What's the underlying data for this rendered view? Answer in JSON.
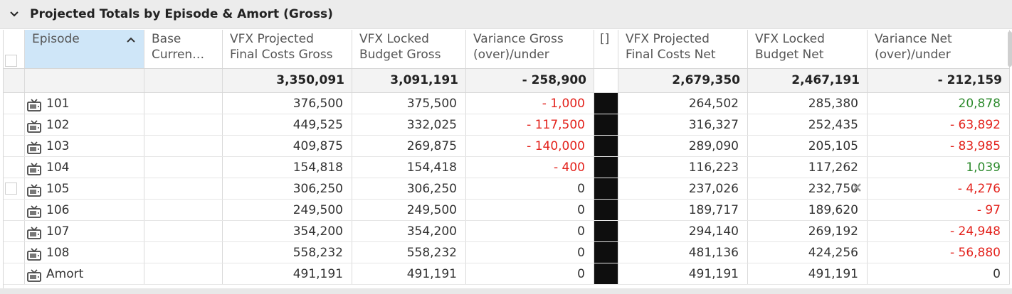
{
  "panel": {
    "title": "Projected Totals by Episode & Amort (Gross)",
    "collapse_icon": "chevron-down-icon"
  },
  "columns": [
    {
      "key": "episode",
      "label": "Episode",
      "sort": "ascending"
    },
    {
      "key": "base_currency",
      "label": "Base\nCurren…"
    },
    {
      "key": "vfx_proj_gross",
      "label": "VFX Projected\nFinal Costs Gross"
    },
    {
      "key": "vfx_locked_gross",
      "label": "VFX Locked\nBudget Gross"
    },
    {
      "key": "var_gross",
      "label": "Variance Gross\n(over)/under"
    },
    {
      "key": "bracket",
      "label": "[]"
    },
    {
      "key": "vfx_proj_net",
      "label": "VFX Projected\nFinal Costs Net"
    },
    {
      "key": "vfx_locked_net",
      "label": "VFX Locked\nBudget Net"
    },
    {
      "key": "var_net",
      "label": "Variance Net\n(over)/under"
    }
  ],
  "totals": {
    "vfx_proj_gross": "3,350,091",
    "vfx_locked_gross": "3,091,191",
    "var_gross": "- 258,900",
    "vfx_proj_net": "2,679,350",
    "vfx_locked_net": "2,467,191",
    "var_net": "- 212,159"
  },
  "rows": [
    {
      "episode": "101",
      "vfx_proj_gross": "376,500",
      "vfx_locked_gross": "375,500",
      "var_gross": "- 1,000",
      "var_gross_tone": "neg",
      "vfx_proj_net": "264,502",
      "vfx_locked_net": "285,380",
      "var_net": "20,878",
      "var_net_tone": "pos"
    },
    {
      "episode": "102",
      "vfx_proj_gross": "449,525",
      "vfx_locked_gross": "332,025",
      "var_gross": "- 117,500",
      "var_gross_tone": "neg",
      "vfx_proj_net": "316,327",
      "vfx_locked_net": "252,435",
      "var_net": "- 63,892",
      "var_net_tone": "neg"
    },
    {
      "episode": "103",
      "vfx_proj_gross": "409,875",
      "vfx_locked_gross": "269,875",
      "var_gross": "- 140,000",
      "var_gross_tone": "neg",
      "vfx_proj_net": "289,090",
      "vfx_locked_net": "205,105",
      "var_net": "- 83,985",
      "var_net_tone": "neg"
    },
    {
      "episode": "104",
      "vfx_proj_gross": "154,818",
      "vfx_locked_gross": "154,418",
      "var_gross": "- 400",
      "var_gross_tone": "neg",
      "vfx_proj_net": "116,223",
      "vfx_locked_net": "117,262",
      "var_net": "1,039",
      "var_net_tone": "pos"
    },
    {
      "episode": "105",
      "vfx_proj_gross": "306,250",
      "vfx_locked_gross": "306,250",
      "var_gross": "0",
      "var_gross_tone": "zero",
      "vfx_proj_net": "237,026",
      "vfx_locked_net": "232,750",
      "var_net": "- 4,276",
      "var_net_tone": "neg",
      "hover": true
    },
    {
      "episode": "106",
      "vfx_proj_gross": "249,500",
      "vfx_locked_gross": "249,500",
      "var_gross": "0",
      "var_gross_tone": "zero",
      "vfx_proj_net": "189,717",
      "vfx_locked_net": "189,620",
      "var_net": "- 97",
      "var_net_tone": "neg"
    },
    {
      "episode": "107",
      "vfx_proj_gross": "354,200",
      "vfx_locked_gross": "354,200",
      "var_gross": "0",
      "var_gross_tone": "zero",
      "vfx_proj_net": "294,140",
      "vfx_locked_net": "269,192",
      "var_net": "- 24,948",
      "var_net_tone": "neg"
    },
    {
      "episode": "108",
      "vfx_proj_gross": "558,232",
      "vfx_locked_gross": "558,232",
      "var_gross": "0",
      "var_gross_tone": "zero",
      "vfx_proj_net": "481,136",
      "vfx_locked_net": "424,256",
      "var_net": "- 56,880",
      "var_net_tone": "neg"
    },
    {
      "episode": "Amort",
      "vfx_proj_gross": "491,191",
      "vfx_locked_gross": "491,191",
      "var_gross": "0",
      "var_gross_tone": "zero",
      "vfx_proj_net": "491,191",
      "vfx_locked_net": "491,191",
      "var_net": "0",
      "var_net_tone": "zero"
    }
  ],
  "icons": {
    "row_icon": "tv-icon",
    "sort_icon": "sort-ascending-icon",
    "clear_icon": "close-icon"
  },
  "colors": {
    "negative": "#e3221c",
    "positive": "#2c8a2c",
    "selected_header": "#cfe6f8"
  }
}
